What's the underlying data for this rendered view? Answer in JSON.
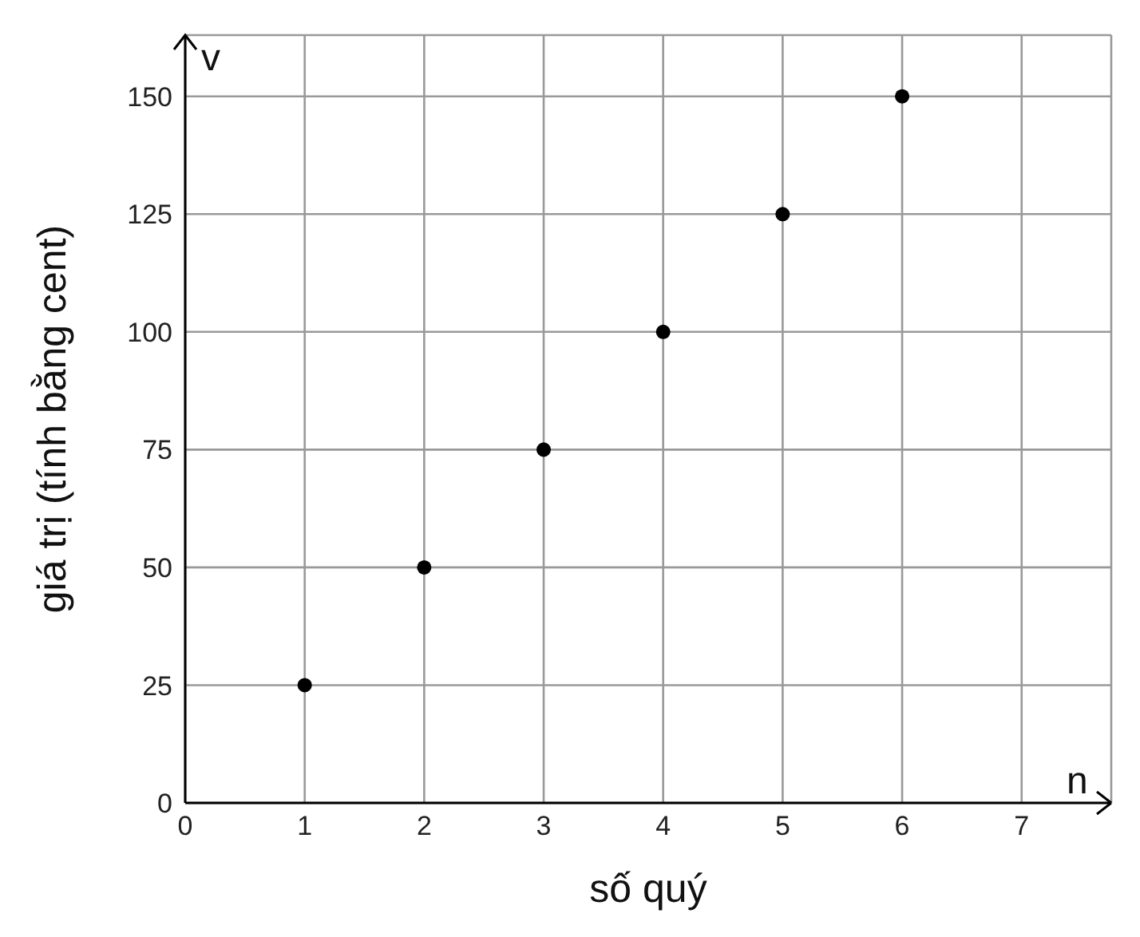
{
  "chart_data": {
    "type": "scatter",
    "xlabel": "số quý",
    "ylabel": "giá trị (tính bằng cent)",
    "annotations": [
      "v",
      "n"
    ],
    "x": [
      1,
      2,
      3,
      4,
      5,
      6
    ],
    "series": [
      {
        "color": "#000000",
        "values": [
          25,
          50,
          75,
          100,
          125,
          150
        ]
      }
    ],
    "xlim": [
      0,
      7.75
    ],
    "xticks": [
      0,
      1,
      2,
      3,
      4,
      5,
      6,
      7
    ],
    "ylim": [
      0,
      163
    ],
    "yticks": [
      0,
      25,
      50,
      75,
      100,
      125,
      150
    ],
    "grid": true,
    "marker": "circle",
    "legend": false
  }
}
